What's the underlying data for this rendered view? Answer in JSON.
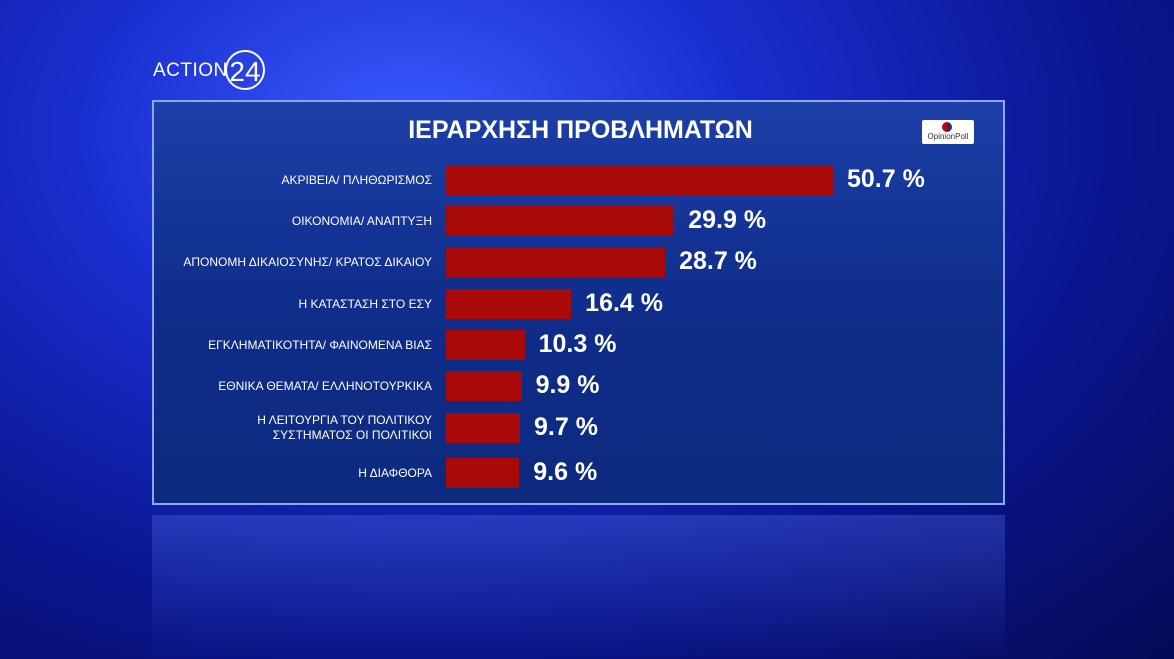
{
  "logo": {
    "brand": "ACTION",
    "number": "24"
  },
  "source": "OpinionPoll",
  "chart_data": {
    "type": "bar",
    "orientation": "horizontal",
    "title": "ΙΕΡΑΡΧΗΣΗ ΠΡΟΒΛΗΜΑΤΩΝ",
    "categories": [
      "ΑΚΡΙΒΕΙΑ/ ΠΛΗΘΩΡΙΣΜΟΣ",
      "ΟΙΚΟΝΟΜΙΑ/ ΑΝΑΠΤΥΞΗ",
      "ΑΠΟΝΟΜΗ ΔΙΚΑΙΟΣΥΝΗΣ/ ΚΡΑΤΟΣ ΔΙΚΑΙΟΥ",
      "Η ΚΑΤΑΣΤΑΣΗ ΣΤΟ ΕΣΥ",
      "ΕΓΚΛΗΜΑΤΙΚΟΤΗΤΑ/ ΦΑΙΝΟΜΕΝΑ ΒΙΑΣ",
      "ΕΘΝΙΚΑ ΘΕΜΑΤΑ/ ΕΛΛΗΝΟΤΟΥΡΚΙΚΑ",
      "Η ΛΕΙΤΟΥΡΓΙΑ ΤΟΥ ΠΟΛΙΤΙΚΟΥ ΣΥΣΤΗΜΑΤΟΣ ΟΙ ΠΟΛΙΤΙΚΟΙ",
      "Η ΔΙΑΦΘΟΡΑ"
    ],
    "values": [
      50.7,
      29.9,
      28.7,
      16.4,
      10.3,
      9.9,
      9.7,
      9.6
    ],
    "value_labels": [
      "50.7 %",
      "29.9 %",
      "28.7 %",
      "16.4 %",
      "10.3 %",
      "9.9 %",
      "9.7 %",
      "9.6 %"
    ],
    "color": "#a80a0a"
  }
}
